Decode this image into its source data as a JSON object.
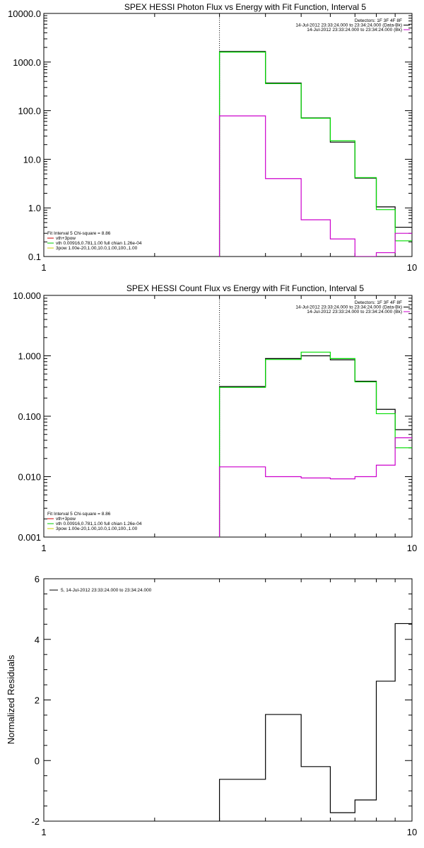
{
  "chart_data": [
    {
      "type": "line",
      "title": "SPEX HESSI Photon Flux vs Energy with Fit Function, Interval 5",
      "xscale": "log",
      "yscale": "log",
      "xlim": [
        1,
        10
      ],
      "ylim": [
        0.1,
        10000
      ],
      "x_ticks": [
        "1",
        "10"
      ],
      "y_ticks": [
        "0.1",
        "1.0",
        "10.0",
        "100.0",
        "1000.0",
        "10000.0"
      ],
      "legend_tr": [
        {
          "text": "Detectors: 1F 3F 4F 8F",
          "line": ""
        },
        {
          "text": "14-Jul-2012 23:33:24.000 to 23:34:24.000 (Data-Bk)",
          "line": "#000000"
        },
        {
          "text": "14-Jul-2012 23:33:24.000 to 23:34:24.000 (Bk)",
          "line": "#cc00cc"
        }
      ],
      "legend_bl": [
        {
          "text": "Fit Interval 5   Chi-square = 8.86",
          "line": ""
        },
        {
          "text": "vth+3pow",
          "line": "#cc0000"
        },
        {
          "text": "vth 0.00916,0.781,1.00  full chian 1.26e-04",
          "line": "#00cc00"
        },
        {
          "text": "3pow 1.00e-20,1.00,10.0,1.00,100.,1.00",
          "line": "#cccc00"
        }
      ],
      "vline_x": 3,
      "series": [
        {
          "color": "#000000",
          "edges": [
            3,
            4,
            5,
            6,
            7,
            8,
            9,
            10
          ],
          "values": [
            1650,
            370,
            71,
            22.5,
            4.1,
            1.05,
            0.4
          ]
        },
        {
          "color": "#00dd00",
          "edges": [
            3,
            4,
            5,
            6,
            7,
            8,
            9,
            10
          ],
          "values": [
            1600,
            360,
            70,
            24,
            4.2,
            0.92,
            0.21
          ]
        },
        {
          "color": "#cc00cc",
          "edges": [
            3,
            4,
            5,
            6,
            7,
            8,
            9,
            10
          ],
          "values": [
            78,
            4.0,
            0.57,
            0.23,
            0.1,
            0.12,
            0.3
          ]
        }
      ]
    },
    {
      "type": "line",
      "title": "SPEX HESSI Count Flux vs Energy with Fit Function, Interval 5",
      "xscale": "log",
      "yscale": "log",
      "xlim": [
        1,
        10
      ],
      "ylim": [
        0.001,
        10
      ],
      "x_ticks": [
        "1",
        "10"
      ],
      "y_ticks": [
        "0.001",
        "0.010",
        "0.100",
        "1.000",
        "10.000"
      ],
      "legend_tr": [
        {
          "text": "Detectors: 1F 3F 4F 8F",
          "line": ""
        },
        {
          "text": "14-Jul-2012 23:33:24.000 to 23:34:24.000 (Data-Bk)",
          "line": "#000000"
        },
        {
          "text": "14-Jul-2012 23:33:24.000 to 23:34:24.000 (Bk)",
          "line": "#cc00cc"
        }
      ],
      "legend_bl": [
        {
          "text": "Fit Interval 5   Chi-square = 8.86",
          "line": ""
        },
        {
          "text": "vth+3pow",
          "line": "#cc0000"
        },
        {
          "text": "vth 0.00916,0.781,1.00  full chian 1.26e-04",
          "line": "#00cc00"
        },
        {
          "text": "3pow 1.00e-20,1.00,10.0,1.00,100.,1.00",
          "line": "#cccc00"
        }
      ],
      "vline_x": 3,
      "series": [
        {
          "color": "#000000",
          "edges": [
            3,
            4,
            5,
            6,
            7,
            8,
            9,
            10
          ],
          "values": [
            0.31,
            0.9,
            1.0,
            0.86,
            0.38,
            0.13,
            0.06
          ]
        },
        {
          "color": "#00dd00",
          "edges": [
            3,
            4,
            5,
            6,
            7,
            8,
            9,
            10
          ],
          "values": [
            0.3,
            0.87,
            1.15,
            0.9,
            0.37,
            0.11,
            0.03
          ]
        },
        {
          "color": "#cc00cc",
          "edges": [
            3,
            4,
            5,
            6,
            7,
            8,
            9,
            10
          ],
          "values": [
            0.0145,
            0.01,
            0.0095,
            0.0092,
            0.01,
            0.0155,
            0.044
          ]
        }
      ]
    },
    {
      "type": "line",
      "title": "",
      "ylabel": "Normalized Residuals",
      "xscale": "log",
      "yscale": "linear",
      "xlim": [
        1,
        10
      ],
      "ylim": [
        -2,
        6
      ],
      "x_ticks": [
        "1",
        "10"
      ],
      "y_ticks": [
        "-2",
        "0",
        "2",
        "4",
        "6"
      ],
      "legend_tl": [
        {
          "text": "5, 14-Jul-2012 23:33:24.000 to 23:34:24.000",
          "line": "#000000"
        }
      ],
      "series": [
        {
          "color": "#000000",
          "edges": [
            3,
            4,
            5,
            6,
            7,
            8,
            9,
            10
          ],
          "values": [
            -0.62,
            1.52,
            -0.2,
            -1.72,
            -1.3,
            2.62,
            4.52
          ]
        }
      ]
    }
  ]
}
